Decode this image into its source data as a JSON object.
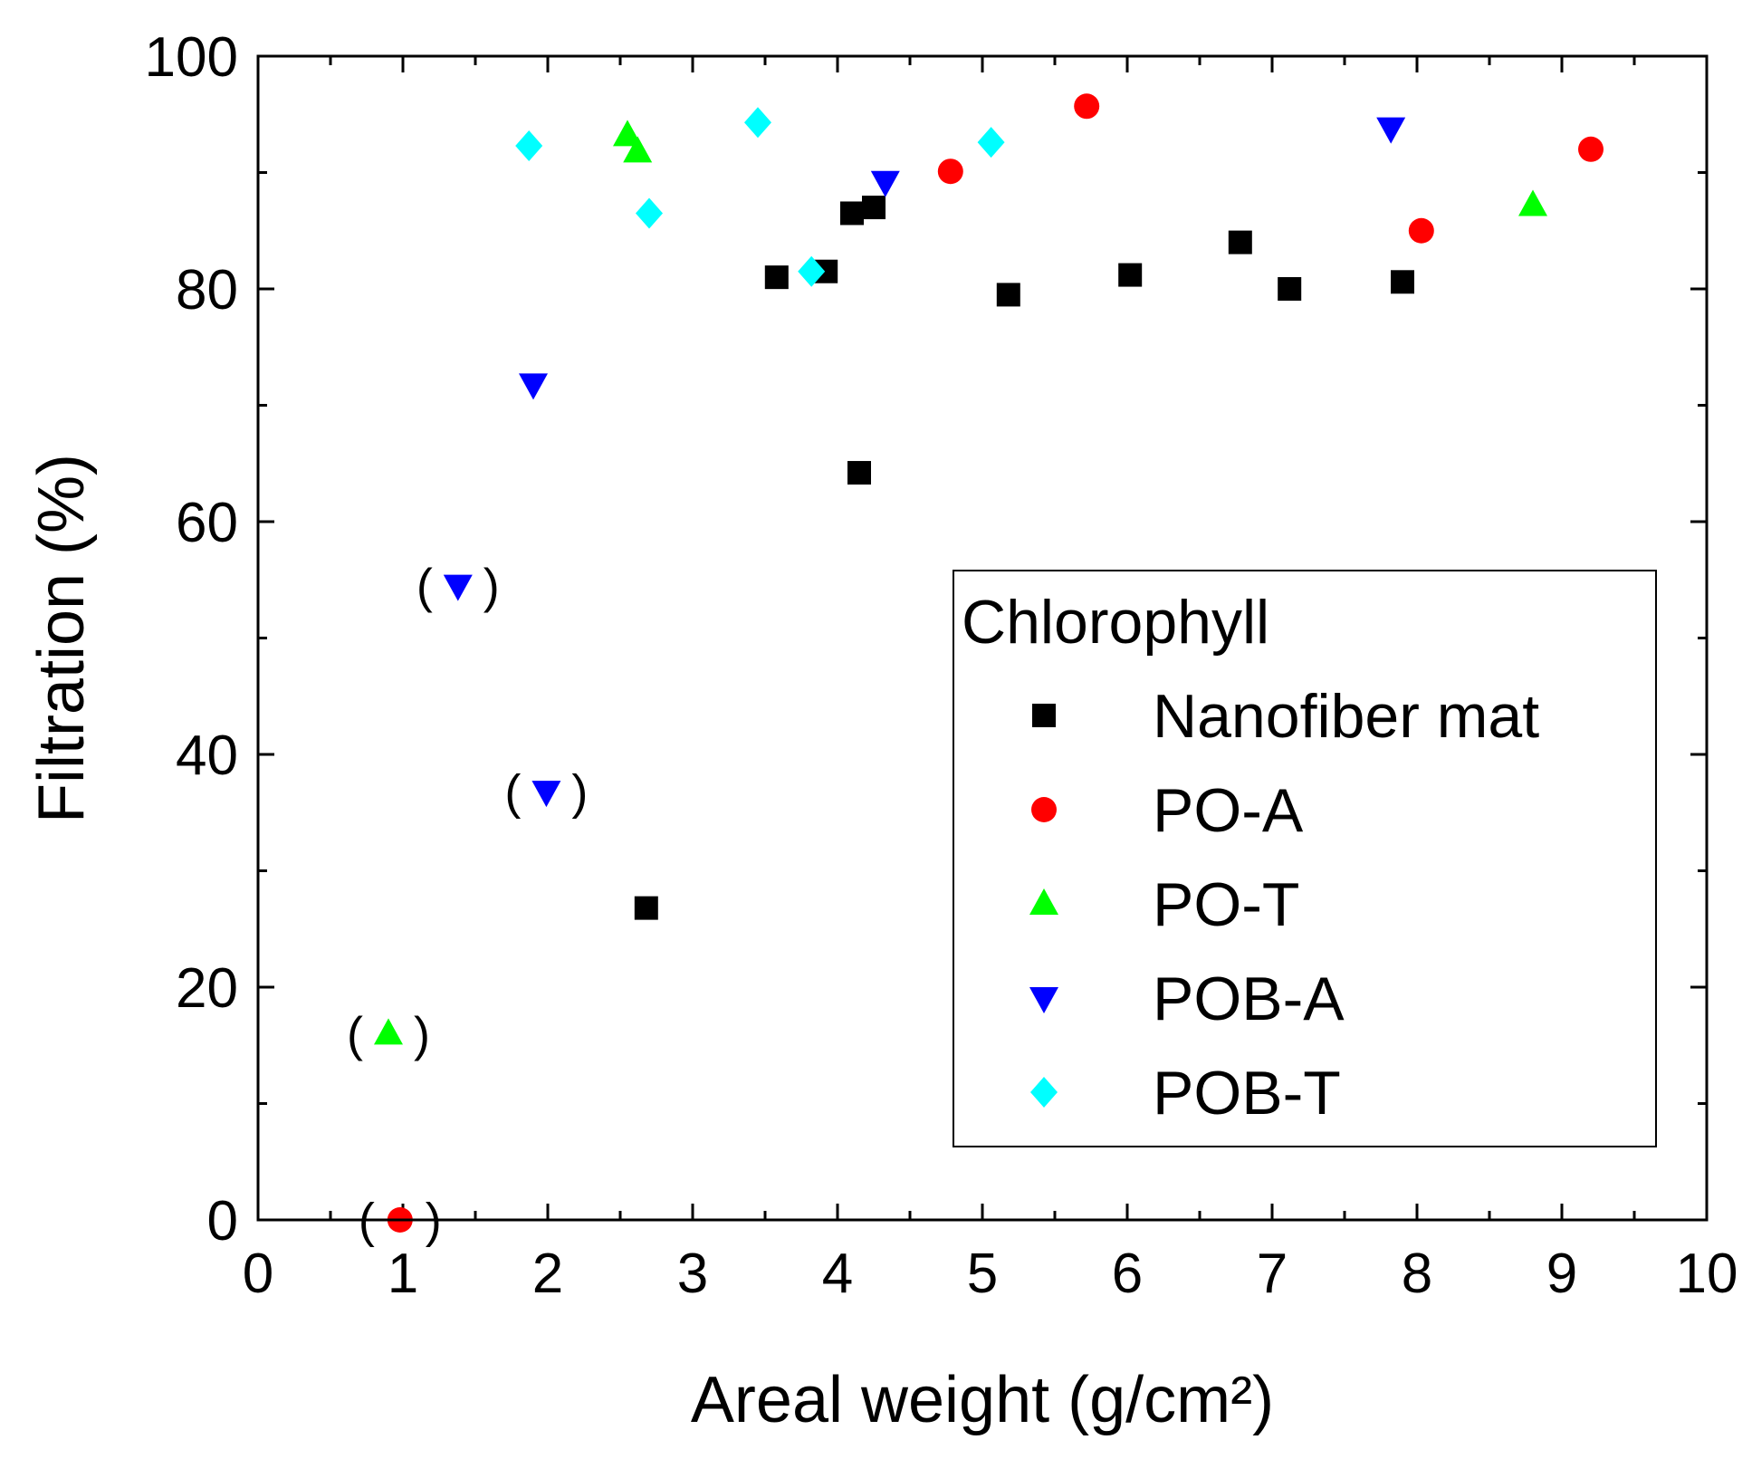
{
  "chart_data": {
    "type": "scatter",
    "title": "",
    "xlabel": "Areal weight (g/cm²)",
    "ylabel": "Filtration (%)",
    "xlim": [
      0,
      10
    ],
    "ylim": [
      0,
      100
    ],
    "x_ticks": [
      "0",
      "1",
      "2",
      "3",
      "4",
      "5",
      "6",
      "7",
      "8",
      "9",
      "10"
    ],
    "y_ticks": [
      "0",
      "20",
      "40",
      "60",
      "80",
      "100"
    ],
    "grid": false,
    "legend": {
      "title": "Chlorophyll",
      "position": "center-right",
      "entries": [
        "Nanofiber mat",
        "PO-A",
        "PO-T",
        "POB-A",
        "POB-T"
      ]
    },
    "series": [
      {
        "name": "Nanofiber mat",
        "marker": "square",
        "color": "#000000",
        "points": [
          {
            "x": 2.68,
            "y": 26.8
          },
          {
            "x": 3.58,
            "y": 81.0
          },
          {
            "x": 3.92,
            "y": 81.5
          },
          {
            "x": 4.1,
            "y": 86.5
          },
          {
            "x": 4.15,
            "y": 64.2
          },
          {
            "x": 4.25,
            "y": 87.0
          },
          {
            "x": 5.18,
            "y": 79.5
          },
          {
            "x": 6.02,
            "y": 81.2
          },
          {
            "x": 6.78,
            "y": 84.0
          },
          {
            "x": 7.12,
            "y": 80.0
          },
          {
            "x": 7.9,
            "y": 80.6
          }
        ]
      },
      {
        "name": "PO-A",
        "marker": "circle",
        "color": "#ff0000",
        "points": [
          {
            "x": 0.98,
            "y": 0.0,
            "parenthesized": true
          },
          {
            "x": 4.78,
            "y": 90.1
          },
          {
            "x": 5.72,
            "y": 95.7
          },
          {
            "x": 8.03,
            "y": 85.0
          },
          {
            "x": 9.2,
            "y": 92.0
          }
        ]
      },
      {
        "name": "PO-T",
        "marker": "triangle-up",
        "color": "#00ff00",
        "points": [
          {
            "x": 0.9,
            "y": 16.0,
            "parenthesized": true
          },
          {
            "x": 2.55,
            "y": 93.2
          },
          {
            "x": 2.62,
            "y": 91.8
          },
          {
            "x": 8.8,
            "y": 87.2
          }
        ]
      },
      {
        "name": "POB-A",
        "marker": "triangle-down",
        "color": "#0000ff",
        "points": [
          {
            "x": 1.38,
            "y": 54.5,
            "parenthesized": true
          },
          {
            "x": 1.9,
            "y": 71.8
          },
          {
            "x": 1.99,
            "y": 36.8,
            "parenthesized": true
          },
          {
            "x": 4.33,
            "y": 89.2
          },
          {
            "x": 7.82,
            "y": 93.8
          }
        ]
      },
      {
        "name": "POB-T",
        "marker": "diamond",
        "color": "#00ffff",
        "points": [
          {
            "x": 1.87,
            "y": 92.3
          },
          {
            "x": 2.7,
            "y": 86.5
          },
          {
            "x": 3.45,
            "y": 94.3
          },
          {
            "x": 3.82,
            "y": 81.5
          },
          {
            "x": 5.06,
            "y": 92.6
          }
        ]
      }
    ],
    "parenthesis_left": "(",
    "parenthesis_right": ")"
  }
}
